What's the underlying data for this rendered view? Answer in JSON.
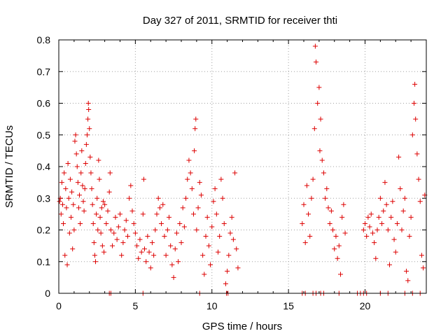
{
  "chart_data": {
    "type": "scatter",
    "title": "Day 327 of 2011, SRMTID for receiver thti",
    "xlabel": "GPS time / hours",
    "ylabel": "SRMTID / TECUs",
    "xlim": [
      0,
      24
    ],
    "ylim": [
      0,
      0.8
    ],
    "xticks": [
      "0",
      "5",
      "10",
      "15",
      "20"
    ],
    "yticks": [
      "0",
      "0.1",
      "0.2",
      "0.3",
      "0.4",
      "0.5",
      "0.6",
      "0.7",
      "0.8"
    ],
    "grid": true,
    "legend": "none",
    "marker": "plus",
    "color": "#dd0000",
    "series": [
      {
        "name": "SRMTID",
        "points": [
          [
            0.05,
            0.29
          ],
          [
            0.1,
            0.3
          ],
          [
            0.15,
            0.25
          ],
          [
            0.2,
            0.35
          ],
          [
            0.25,
            0.28
          ],
          [
            0.3,
            0.22
          ],
          [
            0.35,
            0.38
          ],
          [
            0.4,
            0.12
          ],
          [
            0.45,
            0.33
          ],
          [
            0.5,
            0.27
          ],
          [
            0.55,
            0.09
          ],
          [
            0.6,
            0.41
          ],
          [
            0.65,
            0.3
          ],
          [
            0.7,
            0.19
          ],
          [
            0.75,
            0.36
          ],
          [
            0.8,
            0.24
          ],
          [
            0.85,
            0.32
          ],
          [
            0.9,
            0.14
          ],
          [
            0.95,
            0.28
          ],
          [
            1.0,
            0.2
          ],
          [
            1.05,
            0.48
          ],
          [
            1.1,
            0.5
          ],
          [
            1.15,
            0.44
          ],
          [
            1.2,
            0.4
          ],
          [
            1.25,
            0.35
          ],
          [
            1.3,
            0.27
          ],
          [
            1.35,
            0.31
          ],
          [
            1.4,
            0.22
          ],
          [
            1.45,
            0.38
          ],
          [
            1.5,
            0.45
          ],
          [
            1.55,
            0.34
          ],
          [
            1.6,
            0.29
          ],
          [
            1.65,
            0.26
          ],
          [
            1.7,
            0.33
          ],
          [
            1.75,
            0.41
          ],
          [
            1.8,
            0.47
          ],
          [
            1.85,
            0.5
          ],
          [
            1.9,
            0.55
          ],
          [
            1.93,
            0.6
          ],
          [
            1.95,
            0.58
          ],
          [
            2.0,
            0.52
          ],
          [
            2.05,
            0.43
          ],
          [
            2.1,
            0.38
          ],
          [
            2.15,
            0.33
          ],
          [
            2.2,
            0.28
          ],
          [
            2.25,
            0.22
          ],
          [
            2.3,
            0.16
          ],
          [
            2.35,
            0.12
          ],
          [
            2.4,
            0.1
          ],
          [
            2.45,
            0.25
          ],
          [
            2.5,
            0.3
          ],
          [
            2.55,
            0.2
          ],
          [
            2.6,
            0.42
          ],
          [
            2.65,
            0.36
          ],
          [
            2.7,
            0.24
          ],
          [
            2.75,
            0.19
          ],
          [
            2.8,
            0.27
          ],
          [
            2.85,
            0.15
          ],
          [
            2.9,
            0.29
          ],
          [
            2.95,
            0.13
          ],
          [
            3.0,
            0.28
          ],
          [
            3.1,
            0.22
          ],
          [
            3.2,
            0.26
          ],
          [
            3.3,
            0.32
          ],
          [
            3.35,
            0.38
          ],
          [
            3.4,
            0.2
          ],
          [
            3.5,
            0.15
          ],
          [
            3.6,
            0.19
          ],
          [
            3.7,
            0.24
          ],
          [
            3.8,
            0.17
          ],
          [
            3.9,
            0.21
          ],
          [
            4.0,
            0.25
          ],
          [
            4.1,
            0.12
          ],
          [
            4.2,
            0.16
          ],
          [
            4.3,
            0.2
          ],
          [
            4.4,
            0.23
          ],
          [
            4.5,
            0.18
          ],
          [
            4.6,
            0.3
          ],
          [
            4.7,
            0.34
          ],
          [
            4.8,
            0.26
          ],
          [
            4.9,
            0.22
          ],
          [
            5.0,
            0.19
          ],
          [
            5.1,
            0.15
          ],
          [
            5.2,
            0.11
          ],
          [
            5.3,
            0.17
          ],
          [
            5.4,
            0.13
          ],
          [
            5.5,
            0.25
          ],
          [
            5.55,
            0.36
          ],
          [
            5.6,
            0.14
          ],
          [
            5.7,
            0.1
          ],
          [
            5.8,
            0.18
          ],
          [
            5.9,
            0.13
          ],
          [
            6.0,
            0.08
          ],
          [
            6.1,
            0.16
          ],
          [
            6.2,
            0.12
          ],
          [
            6.3,
            0.2
          ],
          [
            6.4,
            0.25
          ],
          [
            6.5,
            0.3
          ],
          [
            6.6,
            0.27
          ],
          [
            6.7,
            0.22
          ],
          [
            6.8,
            0.28
          ],
          [
            6.9,
            0.18
          ],
          [
            7.0,
            0.12
          ],
          [
            7.1,
            0.2
          ],
          [
            7.2,
            0.24
          ],
          [
            7.3,
            0.15
          ],
          [
            7.4,
            0.09
          ],
          [
            7.5,
            0.05
          ],
          [
            7.6,
            0.14
          ],
          [
            7.7,
            0.19
          ],
          [
            7.8,
            0.1
          ],
          [
            7.9,
            0.22
          ],
          [
            8.0,
            0.16
          ],
          [
            8.1,
            0.27
          ],
          [
            8.2,
            0.21
          ],
          [
            8.3,
            0.3
          ],
          [
            8.4,
            0.36
          ],
          [
            8.5,
            0.42
          ],
          [
            8.6,
            0.38
          ],
          [
            8.7,
            0.33
          ],
          [
            8.8,
            0.25
          ],
          [
            8.85,
            0.45
          ],
          [
            8.9,
            0.52
          ],
          [
            8.95,
            0.55
          ],
          [
            9.0,
            0.2
          ],
          [
            9.1,
            0.27
          ],
          [
            9.2,
            0.35
          ],
          [
            9.3,
            0.31
          ],
          [
            9.4,
            0.12
          ],
          [
            9.5,
            0.06
          ],
          [
            9.6,
            0.18
          ],
          [
            9.7,
            0.24
          ],
          [
            9.8,
            0.15
          ],
          [
            9.9,
            0.09
          ],
          [
            10.0,
            0.21
          ],
          [
            10.1,
            0.29
          ],
          [
            10.2,
            0.33
          ],
          [
            10.3,
            0.25
          ],
          [
            10.4,
            0.13
          ],
          [
            10.5,
            0.18
          ],
          [
            10.6,
            0.36
          ],
          [
            10.7,
            0.3
          ],
          [
            10.8,
            0.22
          ],
          [
            10.9,
            0.03
          ],
          [
            11.0,
            0.07
          ],
          [
            11.1,
            0.12
          ],
          [
            11.2,
            0.19
          ],
          [
            11.3,
            0.24
          ],
          [
            11.4,
            0.17
          ],
          [
            11.5,
            0.38
          ],
          [
            11.6,
            0.14
          ],
          [
            11.7,
            0.08
          ],
          [
            15.9,
            0.22
          ],
          [
            16.0,
            0.28
          ],
          [
            16.1,
            0.16
          ],
          [
            16.2,
            0.34
          ],
          [
            16.3,
            0.25
          ],
          [
            16.4,
            0.18
          ],
          [
            16.5,
            0.3
          ],
          [
            16.6,
            0.36
          ],
          [
            16.7,
            0.52
          ],
          [
            16.75,
            0.78
          ],
          [
            16.8,
            0.73
          ],
          [
            16.9,
            0.6
          ],
          [
            17.0,
            0.65
          ],
          [
            17.05,
            0.45
          ],
          [
            17.1,
            0.55
          ],
          [
            17.2,
            0.42
          ],
          [
            17.3,
            0.38
          ],
          [
            17.4,
            0.3
          ],
          [
            17.5,
            0.33
          ],
          [
            17.6,
            0.27
          ],
          [
            17.7,
            0.22
          ],
          [
            17.8,
            0.26
          ],
          [
            17.9,
            0.2
          ],
          [
            18.0,
            0.14
          ],
          [
            18.1,
            0.18
          ],
          [
            18.2,
            0.11
          ],
          [
            18.3,
            0.15
          ],
          [
            18.4,
            0.06
          ],
          [
            18.5,
            0.24
          ],
          [
            18.6,
            0.28
          ],
          [
            18.7,
            0.19
          ],
          [
            19.9,
            0.2
          ],
          [
            20.0,
            0.22
          ],
          [
            20.1,
            0.18
          ],
          [
            20.2,
            0.24
          ],
          [
            20.3,
            0.21
          ],
          [
            20.4,
            0.25
          ],
          [
            20.5,
            0.19
          ],
          [
            20.6,
            0.16
          ],
          [
            20.7,
            0.11
          ],
          [
            20.8,
            0.2
          ],
          [
            20.9,
            0.24
          ],
          [
            21.0,
            0.3
          ],
          [
            21.1,
            0.22
          ],
          [
            21.2,
            0.26
          ],
          [
            21.3,
            0.35
          ],
          [
            21.4,
            0.28
          ],
          [
            21.5,
            0.2
          ],
          [
            21.6,
            0.09
          ],
          [
            21.7,
            0.24
          ],
          [
            21.8,
            0.29
          ],
          [
            21.9,
            0.17
          ],
          [
            22.0,
            0.13
          ],
          [
            22.1,
            0.22
          ],
          [
            22.2,
            0.43
          ],
          [
            22.3,
            0.33
          ],
          [
            22.4,
            0.2
          ],
          [
            22.5,
            0.26
          ],
          [
            22.6,
            0.3
          ],
          [
            22.7,
            0.07
          ],
          [
            22.8,
            0.04
          ],
          [
            22.9,
            0.18
          ],
          [
            23.0,
            0.24
          ],
          [
            23.1,
            0.5
          ],
          [
            23.2,
            0.6
          ],
          [
            23.25,
            0.66
          ],
          [
            23.3,
            0.55
          ],
          [
            23.4,
            0.44
          ],
          [
            23.5,
            0.36
          ],
          [
            23.6,
            0.29
          ],
          [
            23.7,
            0.12
          ],
          [
            23.8,
            0.08
          ],
          [
            23.9,
            0.31
          ],
          [
            3.3,
            0.0
          ],
          [
            3.4,
            0.0
          ],
          [
            5.5,
            0.0
          ],
          [
            9.2,
            0.0
          ],
          [
            10.95,
            0.0
          ],
          [
            11.05,
            0.0
          ],
          [
            15.9,
            0.0
          ],
          [
            16.1,
            0.0
          ],
          [
            16.6,
            0.0
          ],
          [
            16.8,
            0.0
          ],
          [
            17.1,
            0.0
          ],
          [
            17.3,
            0.0
          ],
          [
            18.3,
            0.0
          ],
          [
            19.5,
            0.0
          ],
          [
            19.7,
            0.0
          ],
          [
            19.9,
            0.0
          ],
          [
            20.1,
            0.0
          ],
          [
            21.0,
            0.0
          ],
          [
            21.5,
            0.0
          ],
          [
            22.6,
            0.0
          ],
          [
            23.1,
            0.0
          ],
          [
            23.6,
            0.0
          ]
        ]
      }
    ]
  }
}
